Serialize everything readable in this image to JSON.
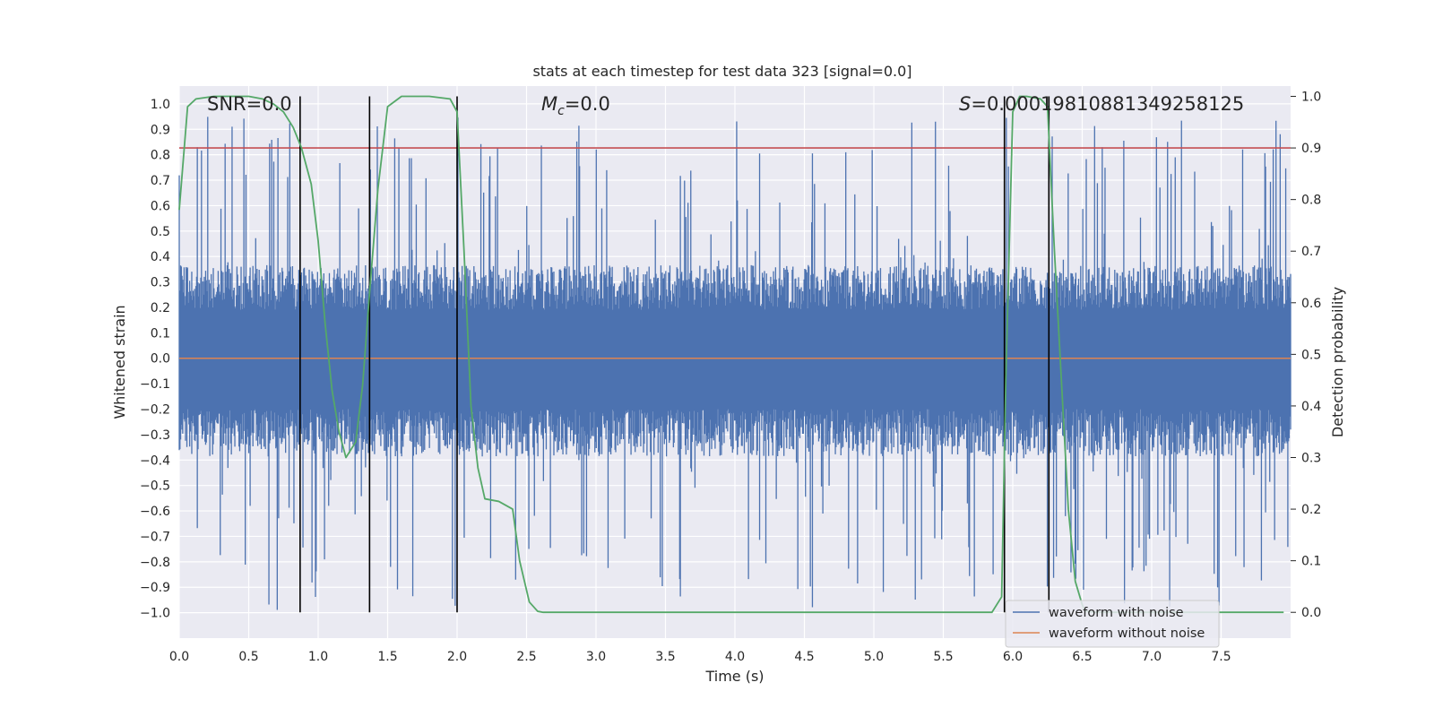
{
  "chart_data": {
    "type": "line",
    "title": "stats at each timestep for test data 323 [signal=0.0]",
    "xlabel": "Time (s)",
    "ylabel_left": "Whitened strain",
    "ylabel_right": "Detection probability",
    "xlim": [
      0.0,
      8.0
    ],
    "ylim_left": [
      -1.1,
      1.07
    ],
    "ylim_right": [
      -0.05,
      1.02
    ],
    "x_ticks": [
      0.0,
      0.5,
      1.0,
      1.5,
      2.0,
      2.5,
      3.0,
      3.5,
      4.0,
      4.5,
      5.0,
      5.5,
      6.0,
      6.5,
      7.0,
      7.5
    ],
    "x_tick_labels": [
      "0.0",
      "0.5",
      "1.0",
      "1.5",
      "2.0",
      "2.5",
      "3.0",
      "3.5",
      "4.0",
      "4.5",
      "5.0",
      "5.5",
      "6.0",
      "6.5",
      "7.0",
      "7.5"
    ],
    "y_left_ticks": [
      1.0,
      0.9,
      0.8,
      0.7,
      0.6,
      0.5,
      0.4,
      0.3,
      0.2,
      0.1,
      0.0,
      -0.1,
      -0.2,
      -0.3,
      -0.4,
      -0.5,
      -0.6,
      -0.7,
      -0.8,
      -0.9,
      -1.0
    ],
    "y_left_tick_labels": [
      "1.0",
      "0.9",
      "0.8",
      "0.7",
      "0.6",
      "0.5",
      "0.4",
      "0.3",
      "0.2",
      "0.1",
      "0.0",
      "−0.1",
      "−0.2",
      "−0.3",
      "−0.4",
      "−0.5",
      "−0.6",
      "−0.7",
      "−0.8",
      "−0.9",
      "−1.0"
    ],
    "y_right_ticks": [
      1.0,
      0.9,
      0.8,
      0.7,
      0.6,
      0.5,
      0.4,
      0.3,
      0.2,
      0.1,
      0.0
    ],
    "y_right_tick_labels": [
      "1.0",
      "0.9",
      "0.8",
      "0.7",
      "0.6",
      "0.5",
      "0.4",
      "0.3",
      "0.2",
      "0.1",
      "0.0"
    ],
    "annotations": {
      "snr": "SNR=0.0",
      "mc_symbol": "M",
      "mc_sub": "c",
      "mc_value": "=0.0",
      "s_symbol": "S",
      "s_value": "=0.00019810881349258125"
    },
    "threshold": {
      "value": 0.9,
      "axis": "right",
      "color": "#c44e52"
    },
    "vertical_lines_x": [
      0.87,
      1.37,
      2.0,
      5.94,
      6.26
    ],
    "series": [
      {
        "name": "waveform with noise",
        "axis": "left",
        "color": "#4c72b0",
        "style": "dense noise",
        "t_start": 0.0,
        "t_end": 8.0,
        "samples": 1600,
        "typical_envelope_upper": 0.38,
        "typical_envelope_lower": -0.4,
        "max": 0.96,
        "min": -1.0
      },
      {
        "name": "waveform without noise",
        "axis": "left",
        "color": "#dd8452",
        "x": [
          0.0,
          8.0
        ],
        "y": [
          0.0,
          0.0
        ]
      },
      {
        "name": "detection probability",
        "axis": "right",
        "color": "#55a868",
        "x": [
          0.0,
          0.06,
          0.12,
          0.25,
          0.5,
          0.6,
          0.68,
          0.75,
          0.82,
          0.88,
          0.95,
          1.0,
          1.05,
          1.1,
          1.15,
          1.2,
          1.27,
          1.32,
          1.37,
          1.43,
          1.5,
          1.6,
          1.8,
          1.95,
          2.0,
          2.05,
          2.1,
          2.15,
          2.2,
          2.3,
          2.4,
          2.45,
          2.52,
          2.58,
          2.62,
          3.0,
          3.5,
          4.0,
          4.5,
          5.0,
          5.5,
          5.85,
          5.92,
          5.95,
          6.0,
          6.05,
          6.1,
          6.2,
          6.25,
          6.3,
          6.35,
          6.4,
          6.45,
          6.5,
          6.52,
          6.6,
          7.0,
          7.5,
          7.95
        ],
        "y": [
          0.78,
          0.98,
          0.995,
          1.0,
          1.0,
          0.995,
          0.985,
          0.97,
          0.94,
          0.9,
          0.83,
          0.72,
          0.56,
          0.43,
          0.35,
          0.3,
          0.33,
          0.44,
          0.62,
          0.82,
          0.98,
          1.0,
          1.0,
          0.995,
          0.97,
          0.7,
          0.4,
          0.28,
          0.22,
          0.215,
          0.2,
          0.1,
          0.02,
          0.002,
          0.0,
          0.0,
          0.0,
          0.0,
          0.0,
          0.0,
          0.0,
          0.0,
          0.03,
          0.45,
          0.97,
          1.0,
          1.0,
          0.995,
          0.98,
          0.7,
          0.45,
          0.2,
          0.06,
          0.015,
          0.002,
          0.0,
          0.0,
          0.0,
          0.0
        ]
      }
    ],
    "legend": {
      "placement": "lower-right",
      "entries": [
        "waveform with noise",
        "waveform without noise"
      ],
      "colors": [
        "#4c72b0",
        "#dd8452"
      ]
    }
  }
}
